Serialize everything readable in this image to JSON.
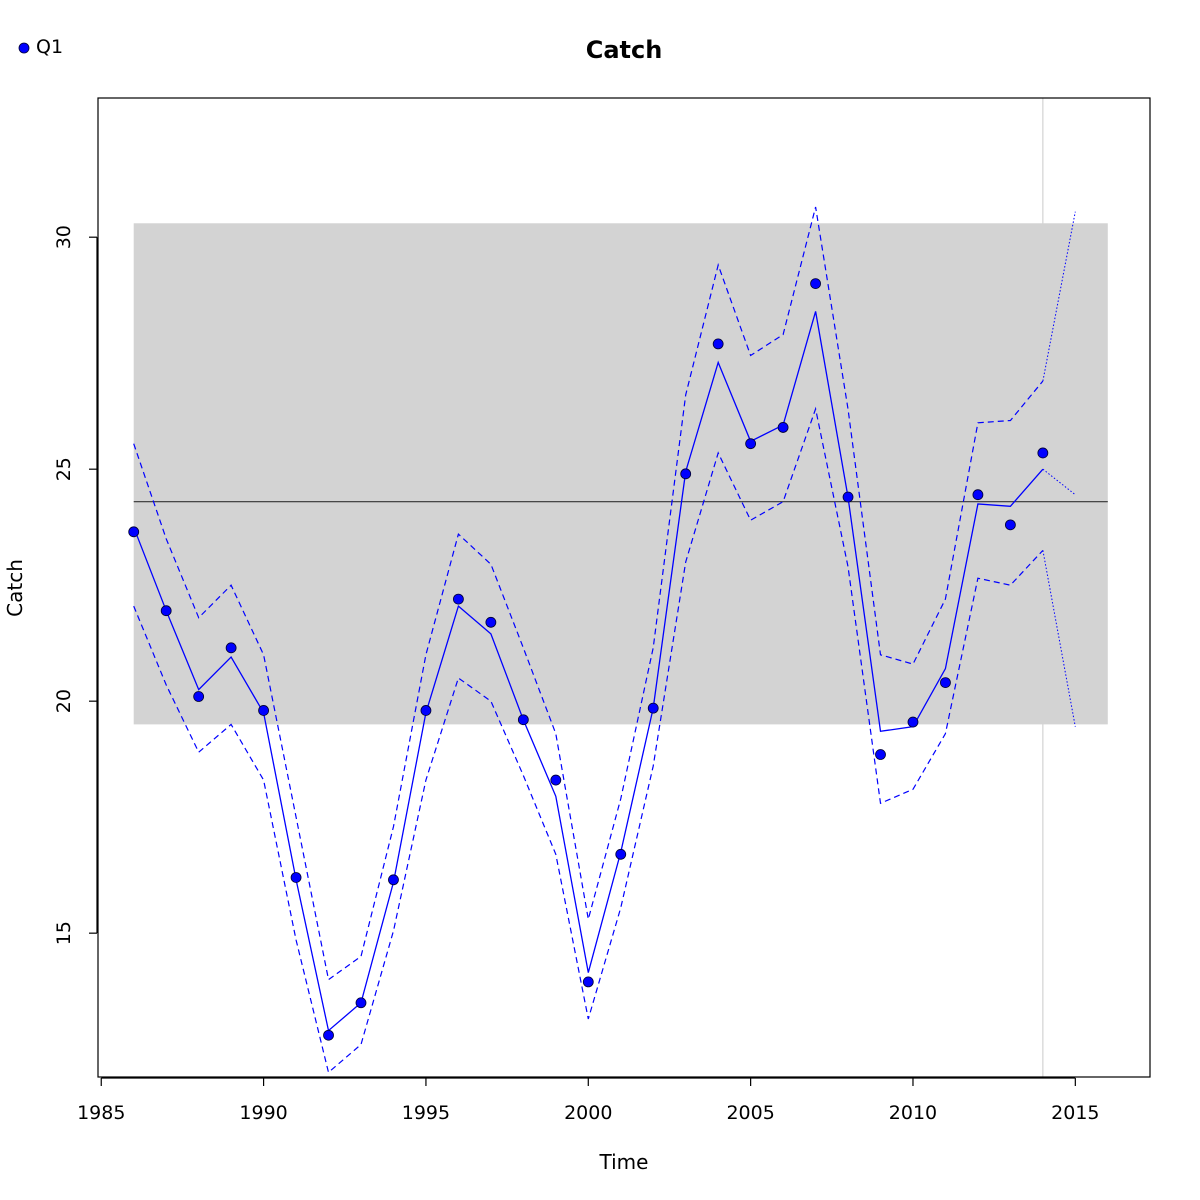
{
  "chart_data": {
    "type": "line",
    "title": "Catch",
    "xlabel": "Time",
    "ylabel": "Catch",
    "xlim": [
      1984.9,
      2017.3
    ],
    "ylim": [
      11.9,
      33.0
    ],
    "x_ticks": [
      1985,
      1990,
      1995,
      2000,
      2005,
      2010,
      2015
    ],
    "y_ticks": [
      15,
      20,
      25,
      30
    ],
    "grid": false,
    "legend": {
      "position": "top-left",
      "entries": [
        "Q1"
      ]
    },
    "band": {
      "x_range": [
        1986,
        2016
      ],
      "y_range": [
        19.5,
        30.3
      ],
      "color": "#d3d3d3"
    },
    "mean_line": {
      "y": 24.3,
      "x_range": [
        1986,
        2016
      ],
      "color": "#333333"
    },
    "forecast_divider_x": 2014,
    "series": [
      {
        "name": "Q1",
        "color": "#0000ff",
        "observed": {
          "x": [
            1986,
            1987,
            1988,
            1989,
            1990,
            1991,
            1992,
            1993,
            1994,
            1995,
            1996,
            1997,
            1998,
            1999,
            2000,
            2001,
            2002,
            2003,
            2004,
            2005,
            2006,
            2007,
            2008,
            2009,
            2010,
            2011,
            2012,
            2013,
            2014
          ],
          "y": [
            23.65,
            21.95,
            20.1,
            21.15,
            19.8,
            16.2,
            12.8,
            13.5,
            16.15,
            19.8,
            22.2,
            21.7,
            19.6,
            18.3,
            13.95,
            16.7,
            19.85,
            24.9,
            27.7,
            25.55,
            25.9,
            29.0,
            24.4,
            18.85,
            19.55,
            20.4,
            24.45,
            23.8,
            25.35
          ]
        },
        "fit": {
          "x": [
            1986,
            1987,
            1988,
            1989,
            1990,
            1991,
            1992,
            1993,
            1994,
            1995,
            1996,
            1997,
            1998,
            1999,
            2000,
            2001,
            2002,
            2003,
            2004,
            2005,
            2006,
            2007,
            2008,
            2009,
            2010,
            2011,
            2012,
            2013,
            2014
          ],
          "y": [
            23.75,
            21.95,
            20.25,
            20.95,
            19.75,
            16.15,
            12.9,
            13.5,
            16.1,
            19.75,
            22.05,
            21.45,
            19.6,
            17.95,
            14.15,
            16.75,
            19.85,
            24.95,
            27.3,
            25.6,
            25.95,
            28.4,
            24.4,
            19.35,
            19.45,
            20.7,
            24.25,
            24.2,
            25.0
          ]
        },
        "lower": {
          "x": [
            1986,
            1987,
            1988,
            1989,
            1990,
            1991,
            1992,
            1993,
            1994,
            1995,
            1996,
            1997,
            1998,
            1999,
            2000,
            2001,
            2002,
            2003,
            2004,
            2005,
            2006,
            2007,
            2008,
            2009,
            2010,
            2011,
            2012,
            2013,
            2014
          ],
          "y": [
            22.05,
            20.35,
            18.9,
            19.5,
            18.3,
            14.85,
            12.0,
            12.6,
            15.05,
            18.3,
            20.5,
            20.0,
            18.4,
            16.7,
            13.15,
            15.55,
            18.6,
            23.0,
            25.35,
            23.9,
            24.3,
            26.3,
            22.9,
            17.8,
            18.1,
            19.3,
            22.65,
            22.5,
            23.25
          ]
        },
        "upper": {
          "x": [
            1986,
            1987,
            1988,
            1989,
            1990,
            1991,
            1992,
            1993,
            1994,
            1995,
            1996,
            1997,
            1998,
            1999,
            2000,
            2001,
            2002,
            2003,
            2004,
            2005,
            2006,
            2007,
            2008,
            2009,
            2010,
            2011,
            2012,
            2013,
            2014
          ],
          "y": [
            25.55,
            23.5,
            21.8,
            22.5,
            21.0,
            17.5,
            14.0,
            14.5,
            17.3,
            21.0,
            23.6,
            22.95,
            21.15,
            19.3,
            15.3,
            17.9,
            21.15,
            26.6,
            29.4,
            27.45,
            27.9,
            30.65,
            26.3,
            21.0,
            20.8,
            22.2,
            26.0,
            26.05,
            26.9
          ]
        },
        "forecast": {
          "x": [
            2014,
            2015
          ],
          "y": [
            25.0,
            24.45
          ],
          "lower": [
            23.25,
            19.45
          ],
          "upper": [
            26.9,
            30.55
          ]
        }
      }
    ]
  }
}
